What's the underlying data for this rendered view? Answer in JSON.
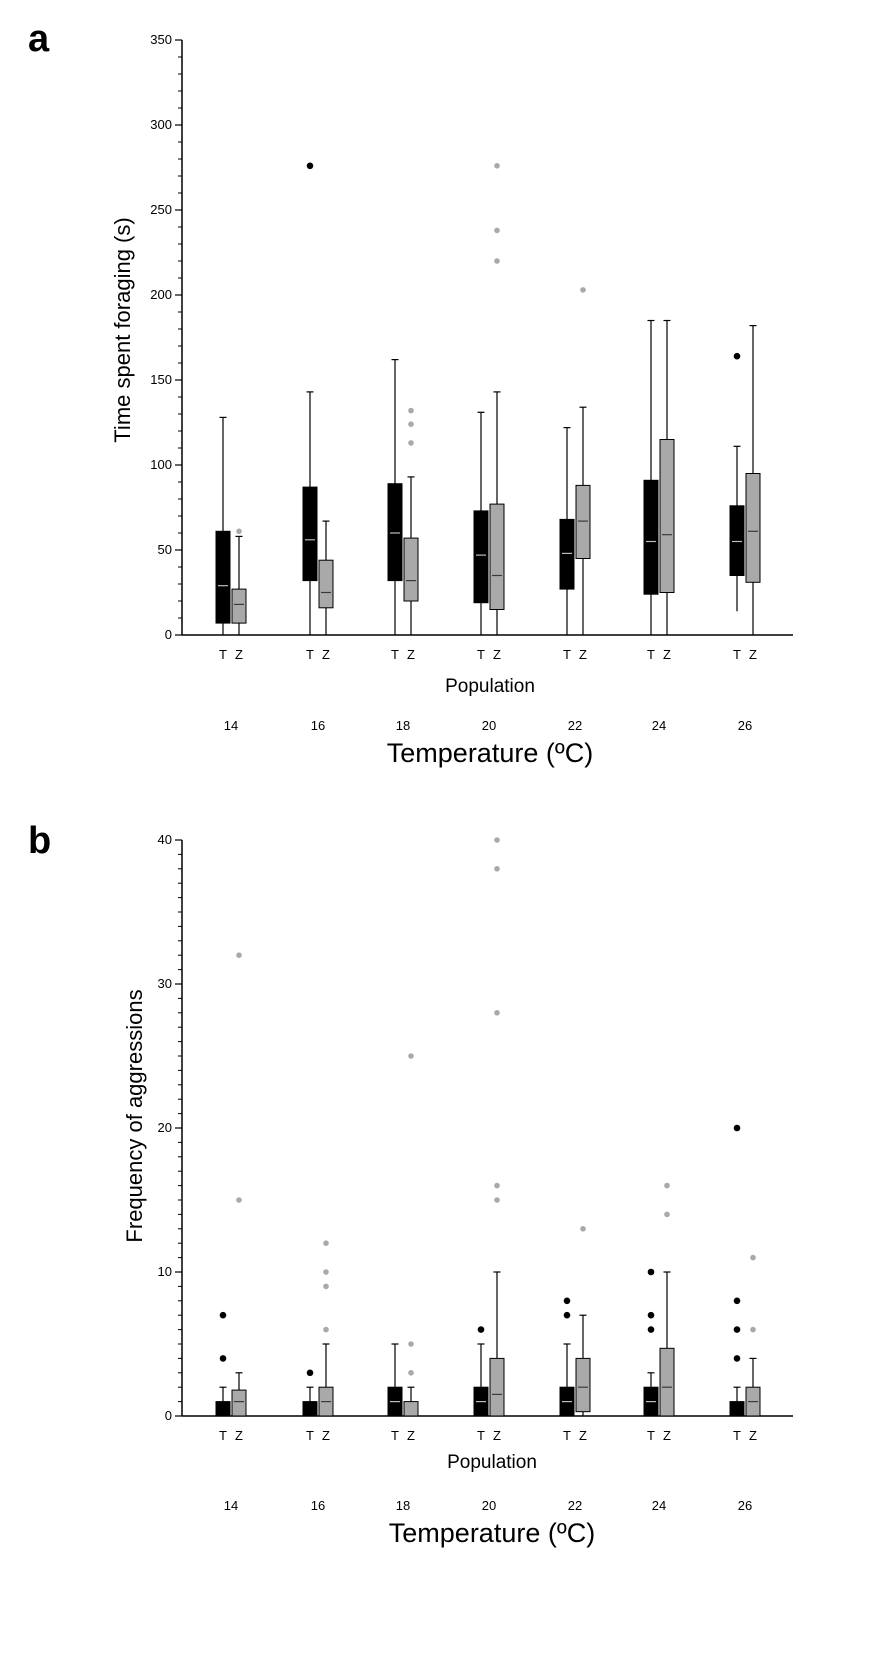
{
  "chart_data": [
    {
      "type": "box",
      "panel_label": "a",
      "ylabel": "Time spent foraging (s)",
      "xlabel": "Population",
      "xlabel2": "Temperature (ºC)",
      "ylim": [
        0,
        350
      ],
      "yticks": [
        0,
        50,
        100,
        150,
        200,
        250,
        300,
        350
      ],
      "minor_tick_step": 10,
      "groups": [
        "14",
        "16",
        "18",
        "20",
        "22",
        "24",
        "26"
      ],
      "series_labels": [
        "T",
        "Z"
      ],
      "colors": {
        "T": "#000000",
        "Z": "#a9a9a9",
        "T_outlier": "#000000",
        "Z_outlier": "#a9a9a9",
        "T_median": "#bdbdbd",
        "Z_median": "#3a3a3a"
      },
      "boxes": {
        "T": [
          {
            "min": 0,
            "q1": 7,
            "median": 29,
            "q3": 61,
            "max": 128,
            "outliers": []
          },
          {
            "min": 0,
            "q1": 32,
            "median": 56,
            "q3": 87,
            "max": 143,
            "outliers": [
              276
            ]
          },
          {
            "min": 0,
            "q1": 32,
            "median": 60,
            "q3": 89,
            "max": 162,
            "outliers": []
          },
          {
            "min": 0,
            "q1": 19,
            "median": 47,
            "q3": 73,
            "max": 131,
            "outliers": []
          },
          {
            "min": 0,
            "q1": 27,
            "median": 48,
            "q3": 68,
            "max": 122,
            "outliers": []
          },
          {
            "min": 0,
            "q1": 24,
            "median": 55,
            "q3": 91,
            "max": 185,
            "outliers": []
          },
          {
            "min": 14,
            "q1": 35,
            "median": 55,
            "q3": 76,
            "max": 111,
            "outliers": [
              164
            ]
          }
        ],
        "Z": [
          {
            "min": 0,
            "q1": 7,
            "median": 18,
            "q3": 27,
            "max": 58,
            "outliers": [
              61
            ]
          },
          {
            "min": 0,
            "q1": 16,
            "median": 25,
            "q3": 44,
            "max": 67,
            "outliers": []
          },
          {
            "min": 0,
            "q1": 20,
            "median": 32,
            "q3": 57,
            "max": 93,
            "outliers": [
              113,
              124,
              132
            ]
          },
          {
            "min": 0,
            "q1": 15,
            "median": 35,
            "q3": 77,
            "max": 143,
            "outliers": [
              220,
              238,
              276
            ]
          },
          {
            "min": 0,
            "q1": 45,
            "median": 67,
            "q3": 88,
            "max": 134,
            "outliers": [
              203
            ]
          },
          {
            "min": 0,
            "q1": 25,
            "median": 59,
            "q3": 115,
            "max": 185,
            "outliers": []
          },
          {
            "min": 0,
            "q1": 31,
            "median": 61,
            "q3": 95,
            "max": 182,
            "outliers": []
          }
        ]
      }
    },
    {
      "type": "box",
      "panel_label": "b",
      "ylabel": "Frequency of aggressions",
      "xlabel": "Population",
      "xlabel2": "Temperature (ºC)",
      "ylim": [
        0,
        40
      ],
      "yticks": [
        0,
        10,
        20,
        30,
        40
      ],
      "minor_tick_step": 1,
      "groups": [
        "14",
        "16",
        "18",
        "20",
        "22",
        "24",
        "26"
      ],
      "series_labels": [
        "T",
        "Z"
      ],
      "colors": {
        "T": "#000000",
        "Z": "#a9a9a9",
        "T_outlier": "#000000",
        "Z_outlier": "#a9a9a9",
        "T_median": "#bdbdbd",
        "Z_median": "#3a3a3a"
      },
      "boxes": {
        "T": [
          {
            "min": 0,
            "q1": 0,
            "median": 0,
            "q3": 1,
            "max": 2,
            "outliers": [
              4,
              7
            ]
          },
          {
            "min": 0,
            "q1": 0,
            "median": 0,
            "q3": 1,
            "max": 2,
            "outliers": [
              3
            ]
          },
          {
            "min": 0,
            "q1": 0,
            "median": 1,
            "q3": 2,
            "max": 5,
            "outliers": []
          },
          {
            "min": 0,
            "q1": 0,
            "median": 1,
            "q3": 2,
            "max": 5,
            "outliers": [
              6
            ]
          },
          {
            "min": 0,
            "q1": 0,
            "median": 1,
            "q3": 2,
            "max": 5,
            "outliers": [
              7,
              8
            ]
          },
          {
            "min": 0,
            "q1": 0,
            "median": 1,
            "q3": 2,
            "max": 3,
            "outliers": [
              6,
              7,
              10
            ]
          },
          {
            "min": 0,
            "q1": 0,
            "median": 0,
            "q3": 1,
            "max": 2,
            "outliers": [
              4,
              6,
              8,
              20
            ]
          }
        ],
        "Z": [
          {
            "min": 0,
            "q1": 0,
            "median": 1,
            "q3": 1.8,
            "max": 3,
            "outliers": [
              15,
              32
            ]
          },
          {
            "min": 0,
            "q1": 0,
            "median": 1,
            "q3": 2,
            "max": 5,
            "outliers": [
              6,
              9,
              10,
              12
            ]
          },
          {
            "min": 0,
            "q1": 0,
            "median": 0,
            "q3": 1,
            "max": 2,
            "outliers": [
              3,
              5,
              25
            ]
          },
          {
            "min": 0,
            "q1": 0,
            "median": 1.5,
            "q3": 4,
            "max": 10,
            "outliers": [
              15,
              16,
              28,
              38,
              40
            ]
          },
          {
            "min": 0,
            "q1": 0.3,
            "median": 2,
            "q3": 4,
            "max": 7,
            "outliers": [
              13
            ]
          },
          {
            "min": 0,
            "q1": 0,
            "median": 2,
            "q3": 4.7,
            "max": 10,
            "outliers": [
              14,
              16
            ]
          },
          {
            "min": 0,
            "q1": 0,
            "median": 1,
            "q3": 2,
            "max": 4,
            "outliers": [
              6,
              11
            ]
          }
        ]
      }
    }
  ]
}
